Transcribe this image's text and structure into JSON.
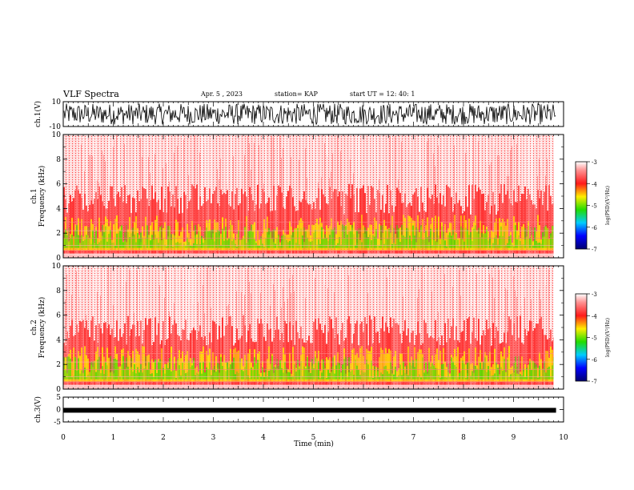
{
  "header": {
    "title": "VLF Spectra",
    "date": "Apr. 5  , 2023",
    "station": "station= KAP",
    "start": "start  UT  =   12: 40: 1"
  },
  "colorbar": {
    "label": "log(PSD)(V²/Hz)",
    "ticks": [
      "-3",
      "-4",
      "-5",
      "-6",
      "-7"
    ],
    "range": [
      -7,
      -3
    ]
  },
  "chart_data": [
    {
      "type": "line",
      "ylabel": "ch.1(V)",
      "ylim": [
        -10,
        10
      ],
      "yticks": [
        "10",
        "-10"
      ],
      "xlim": [
        0,
        10
      ],
      "description_series": "noise waveform",
      "series": [
        {
          "values_summary": "fluctuates between about -8 and 9"
        }
      ]
    },
    {
      "type": "heatmap",
      "ylabel": "ch.1\nFrequency  (kHz)",
      "ylim": [
        0,
        10
      ],
      "yticks": [
        "0",
        "2",
        "4",
        "6",
        "8",
        "10"
      ],
      "xlim": [
        0,
        10
      ],
      "data_end_min": 9.8
    },
    {
      "type": "heatmap",
      "ylabel": "ch.2\nFrequency  (kHz)",
      "ylim": [
        0,
        10
      ],
      "yticks": [
        "0",
        "2",
        "4",
        "6",
        "8",
        "10"
      ],
      "xlim": [
        0,
        10
      ],
      "data_end_min": 9.8
    },
    {
      "type": "line",
      "ylabel": "ch.3(V)",
      "ylim": [
        -5,
        5
      ],
      "yticks": [
        "5",
        "0",
        "-5"
      ],
      "xlim": [
        0,
        10
      ],
      "series": [
        {
          "level": -0.3
        }
      ]
    }
  ],
  "xaxis": {
    "label": "Time  (min)",
    "ticks": [
      "0",
      "1",
      "2",
      "3",
      "4",
      "5",
      "6",
      "7",
      "8",
      "9",
      "10"
    ]
  },
  "colors": {
    "noise_red": "#ff1a1a",
    "background_pink": "#ffd0d0",
    "green": "#22dd00",
    "yellow": "#ffee00"
  }
}
